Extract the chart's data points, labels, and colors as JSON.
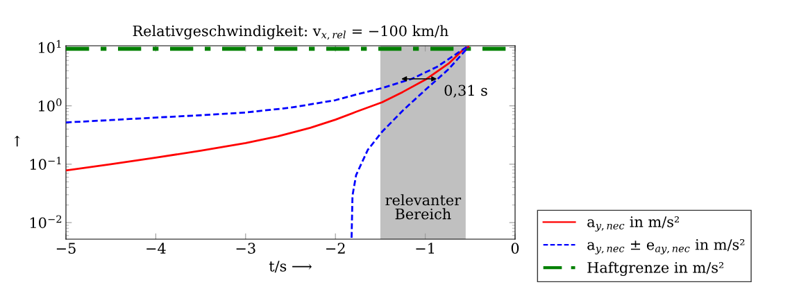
{
  "chart_data": {
    "type": "line",
    "title": "Relativgeschwindigkeit: v$_{x,rel}$ = −100 km/h",
    "xlabel": "t/s ⟶",
    "ylabel": "↑",
    "log": "y",
    "xlim": [
      -5,
      0
    ],
    "xticks": [
      -5,
      -4,
      -3,
      -2,
      -1,
      0
    ],
    "ylim": [
      0.0052,
      10.7
    ],
    "yticks": [
      {
        "value": 0.01,
        "label": "10$^{−2}$"
      },
      {
        "value": 0.1,
        "label": "10$^{−1}$"
      },
      {
        "value": 1,
        "label": "10$^{0}$"
      },
      {
        "value": 10,
        "label": "10$^{1}$"
      }
    ],
    "grid": false,
    "legend": "right",
    "marker": "none",
    "series": [
      {
        "name": "a$_{y,nec}$ in m/s²",
        "color": "#ff0000",
        "line_style": "solid",
        "x": [
          -5,
          -4.5,
          -4.0,
          -3.5,
          -3.0,
          -2.64,
          -2.28,
          -2.0,
          -1.77,
          -1.48,
          -1.25,
          -1.0,
          -0.74,
          -0.56,
          -0.52
        ],
        "values": [
          0.078,
          0.1,
          0.13,
          0.17,
          0.23,
          0.3,
          0.42,
          0.58,
          0.79,
          1.15,
          1.73,
          2.8,
          5.3,
          9.7,
          10.2
        ]
      },
      {
        "name": "a$_{y,nec}$ ± e$_{ay,nec}$ in m/s²",
        "color": "#0000ff",
        "line_style": "dashed",
        "x": [
          -5,
          -4.5,
          -4.0,
          -3.5,
          -3.0,
          -2.5,
          -2.0,
          -1.77,
          -1.48,
          -1.15,
          -0.87,
          -0.56,
          -0.53
        ],
        "values": [
          0.52,
          0.57,
          0.63,
          0.69,
          0.77,
          0.93,
          1.25,
          1.56,
          2.02,
          2.9,
          4.65,
          9.7,
          10.3
        ]
      },
      {
        "color": "#0000ff",
        "line_style": "dashed",
        "x": [
          -1.82,
          -1.81,
          -1.77,
          -1.64,
          -1.48,
          -1.25,
          -1.0,
          -0.87,
          -0.74,
          -0.56,
          -0.52
        ],
        "values": [
          0.0055,
          0.029,
          0.065,
          0.176,
          0.36,
          0.83,
          1.87,
          2.82,
          4.25,
          8.7,
          10.0
        ]
      },
      {
        "name": "Haftgrenze in m/s²",
        "color": "#008000",
        "line_style": "dashdot",
        "x": [
          -5,
          0
        ],
        "values": [
          9.5,
          9.5
        ]
      }
    ],
    "bands": [
      {
        "axis": "x",
        "from": -1.5,
        "to": -0.55,
        "label": "relevanter\nBereich",
        "color": "#c0c0c0"
      }
    ],
    "annotations": [
      {
        "text": "0,31 s",
        "x": -0.87,
        "y": 2.9
      }
    ]
  }
}
